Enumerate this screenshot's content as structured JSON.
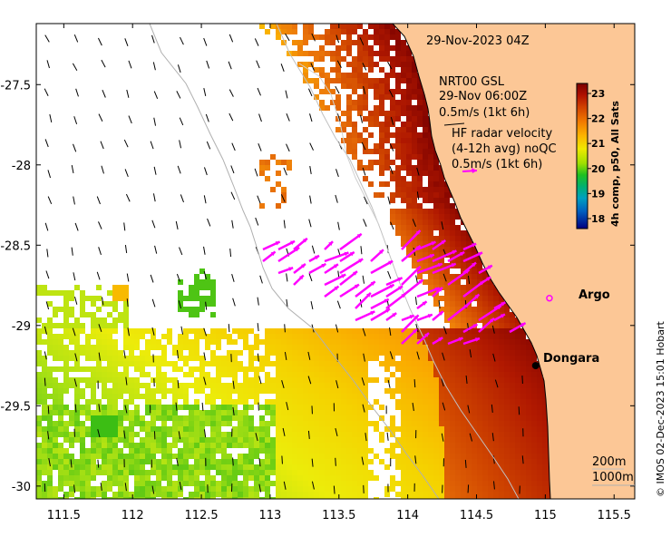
{
  "map": {
    "timestamp": "29-Nov-2023 04Z",
    "wind_block": {
      "line1": "NRT00 GSL",
      "line2": "29-Nov 06:00Z",
      "line3": "0.5m/s (1kt 6h)"
    },
    "hf_block": {
      "line1": "HF radar velocity",
      "line2": "(4-12h avg) noQC",
      "line3": "0.5m/s (1kt 6h)"
    },
    "x_ticks": [
      "111.5",
      "112",
      "112.5",
      "113",
      "113.5",
      "114",
      "114.5",
      "115",
      "115.5"
    ],
    "y_ticks": [
      "-27.5",
      "-28",
      "-28.5",
      "-29",
      "-29.5",
      "-30"
    ],
    "x_range": [
      111.3,
      115.65
    ],
    "y_range": [
      -30.08,
      -27.12
    ],
    "colorbar": {
      "ticks": [
        "23",
        "22",
        "21",
        "20",
        "19",
        "18"
      ],
      "title": "4h comp, p50, All Sats",
      "range": [
        17.6,
        23.4
      ]
    },
    "labels": {
      "argo": "Argo",
      "dongara": "Dongara",
      "iso_200": "200m",
      "iso_1000": "1000m",
      "credit": "© IMOS 02-Dec-2023 15:01 Hobart"
    },
    "places": {
      "argo": {
        "lon": 115.03,
        "lat": -28.83
      },
      "dongara": {
        "lon": 114.93,
        "lat": -29.25
      }
    },
    "colors": {
      "land": "#fcc796",
      "hf_vector": "#ff00ff",
      "sst_hot": "#7a0000",
      "sst_warm": "#f5e000",
      "sst_cool": "#00a000"
    }
  }
}
